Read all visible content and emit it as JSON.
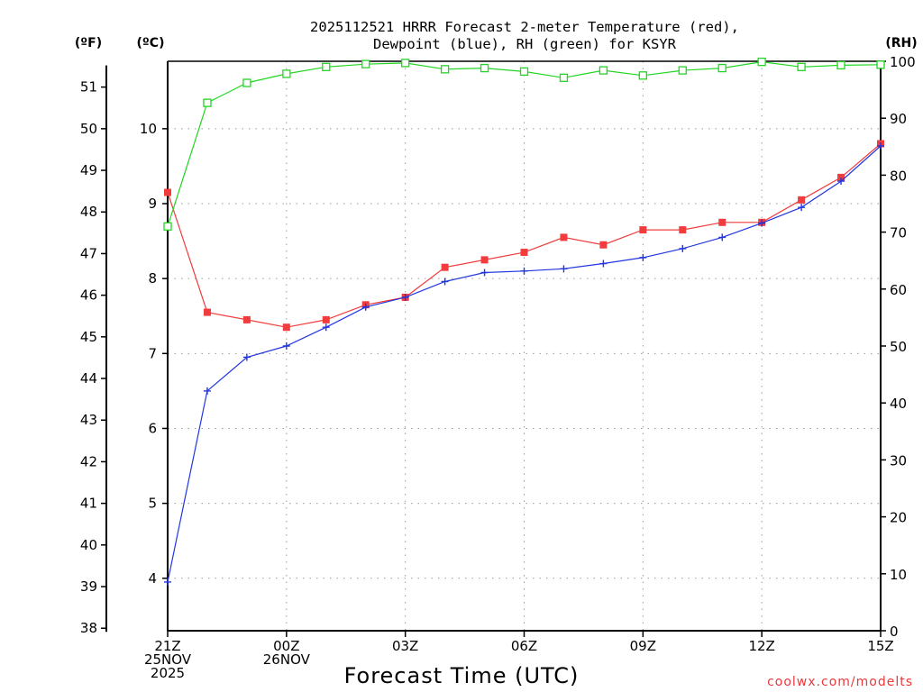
{
  "title_line1": "2025112521 HRRR Forecast 2-meter Temperature (red),",
  "title_line2": "Dewpoint (blue), RH (green) for KSYR",
  "units": {
    "f": "(ºF)",
    "c": "(ºC)",
    "rh": "(RH)"
  },
  "x_axis_title": "Forecast Time (UTC)",
  "credit": "coolwx.com/modelts",
  "colors": {
    "temp": "#f03c3c",
    "dewpoint": "#2236e0",
    "rh": "#22d622",
    "grid": "#9a9a9a"
  },
  "chart_data": {
    "type": "line",
    "title": "2025112521 HRRR Forecast 2-meter Temperature (red), Dewpoint (blue), RH (green) for KSYR",
    "xlabel": "Forecast Time (UTC)",
    "x_hours": [
      0,
      1,
      2,
      3,
      4,
      5,
      6,
      7,
      8,
      9,
      10,
      11,
      12,
      13,
      14,
      15,
      16,
      17,
      18
    ],
    "x_range": [
      0,
      18
    ],
    "x_ticks": [
      {
        "hour": 0,
        "lines": [
          "21Z",
          "25NOV",
          "2025"
        ]
      },
      {
        "hour": 3,
        "lines": [
          "00Z",
          "26NOV"
        ]
      },
      {
        "hour": 6,
        "lines": [
          "03Z"
        ]
      },
      {
        "hour": 9,
        "lines": [
          "06Z"
        ]
      },
      {
        "hour": 12,
        "lines": [
          "09Z"
        ]
      },
      {
        "hour": 15,
        "lines": [
          "12Z"
        ]
      },
      {
        "hour": 18,
        "lines": [
          "15Z"
        ]
      }
    ],
    "y_celsius": {
      "label": "(ºC)",
      "range": [
        3.3,
        10.9
      ],
      "ticks": [
        4,
        5,
        6,
        7,
        8,
        9,
        10
      ]
    },
    "y_fahrenheit": {
      "label": "(ºF)",
      "ticks": [
        38,
        39,
        40,
        41,
        42,
        43,
        44,
        45,
        46,
        47,
        48,
        49,
        50,
        51
      ]
    },
    "y_rh": {
      "label": "(RH)",
      "range": [
        0,
        100
      ],
      "ticks": [
        0,
        10,
        20,
        30,
        40,
        50,
        60,
        70,
        80,
        90,
        100
      ]
    },
    "series": [
      {
        "name": "Temperature",
        "axis": "celsius",
        "color": "red",
        "marker": "filled-square",
        "values": [
          9.15,
          7.55,
          7.45,
          7.35,
          7.45,
          7.65,
          7.75,
          8.15,
          8.25,
          8.35,
          8.55,
          8.45,
          8.65,
          8.65,
          8.75,
          8.75,
          9.05,
          9.35,
          9.8
        ]
      },
      {
        "name": "Dewpoint",
        "axis": "celsius",
        "color": "blue",
        "marker": "plus",
        "values": [
          3.95,
          6.5,
          6.95,
          7.1,
          7.35,
          7.62,
          7.75,
          7.96,
          8.08,
          8.1,
          8.13,
          8.2,
          8.28,
          8.4,
          8.55,
          8.74,
          8.95,
          9.3,
          9.77
        ]
      },
      {
        "name": "Relative Humidity",
        "axis": "rh",
        "color": "green",
        "marker": "open-square",
        "values": [
          71,
          92.7,
          96.2,
          97.8,
          99,
          99.5,
          99.7,
          98.6,
          98.8,
          98.2,
          97.1,
          98.4,
          97.5,
          98.4,
          98.8,
          99.9,
          99,
          99.3,
          99.4
        ]
      }
    ]
  }
}
